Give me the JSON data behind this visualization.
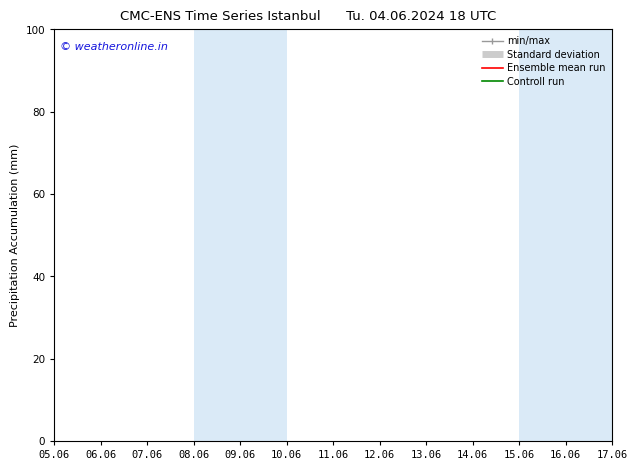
{
  "title_left": "CMC-ENS Time Series Istanbul",
  "title_right": "Tu. 04.06.2024 18 UTC",
  "ylabel": "Precipitation Accumulation (mm)",
  "ylim": [
    0,
    100
  ],
  "yticks": [
    0,
    20,
    40,
    60,
    80,
    100
  ],
  "x_labels": [
    "05.06",
    "06.06",
    "07.06",
    "08.06",
    "09.06",
    "10.06",
    "11.06",
    "12.06",
    "13.06",
    "14.06",
    "15.06",
    "16.06",
    "17.06"
  ],
  "x_positions": [
    0,
    1,
    2,
    3,
    4,
    5,
    6,
    7,
    8,
    9,
    10,
    11,
    12
  ],
  "xlim": [
    0,
    12
  ],
  "shaded_regions": [
    {
      "xmin": 3,
      "xmax": 5,
      "color": "#daeaf7"
    },
    {
      "xmin": 10,
      "xmax": 12,
      "color": "#daeaf7"
    }
  ],
  "bg_color": "#ffffff",
  "watermark_text": "© weatheronline.in",
  "watermark_color": "#1515dd",
  "legend_items": [
    {
      "label": "min/max",
      "color": "#999999",
      "lw": 1.0
    },
    {
      "label": "Standard deviation",
      "color": "#cccccc",
      "lw": 5
    },
    {
      "label": "Ensemble mean run",
      "color": "#ff0000",
      "lw": 1.2
    },
    {
      "label": "Controll run",
      "color": "#008800",
      "lw": 1.2
    }
  ],
  "title_fontsize": 9.5,
  "tick_fontsize": 7.5,
  "ylabel_fontsize": 8,
  "watermark_fontsize": 8,
  "legend_fontsize": 7
}
